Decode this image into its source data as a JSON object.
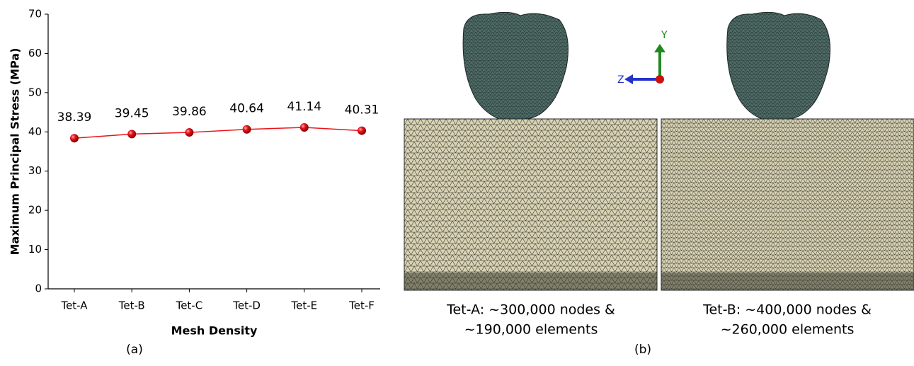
{
  "chart_data": {
    "type": "line",
    "x_label": "Mesh Density",
    "y_label": "Maximum Principal Stress (MPa)",
    "categories": [
      "Tet-A",
      "Tet-B",
      "Tet-C",
      "Tet-D",
      "Tet-E",
      "Tet-F"
    ],
    "values": [
      38.39,
      39.45,
      39.86,
      40.64,
      41.14,
      40.31
    ],
    "color": "#e8141b",
    "ylim": [
      0,
      70
    ],
    "yticks": [
      0,
      10,
      20,
      30,
      40,
      50,
      60,
      70
    ]
  },
  "figure_labels": [
    "(a)",
    "(b)"
  ],
  "axis_triad": [
    "Y",
    "Z"
  ],
  "meshes": [
    {
      "caption": [
        "Tet-A: ~300,000 nodes &",
        "~190,000 elements"
      ]
    },
    {
      "caption": [
        "Tet-B: ~400,000 nodes &",
        "~260,000 elements"
      ]
    }
  ]
}
